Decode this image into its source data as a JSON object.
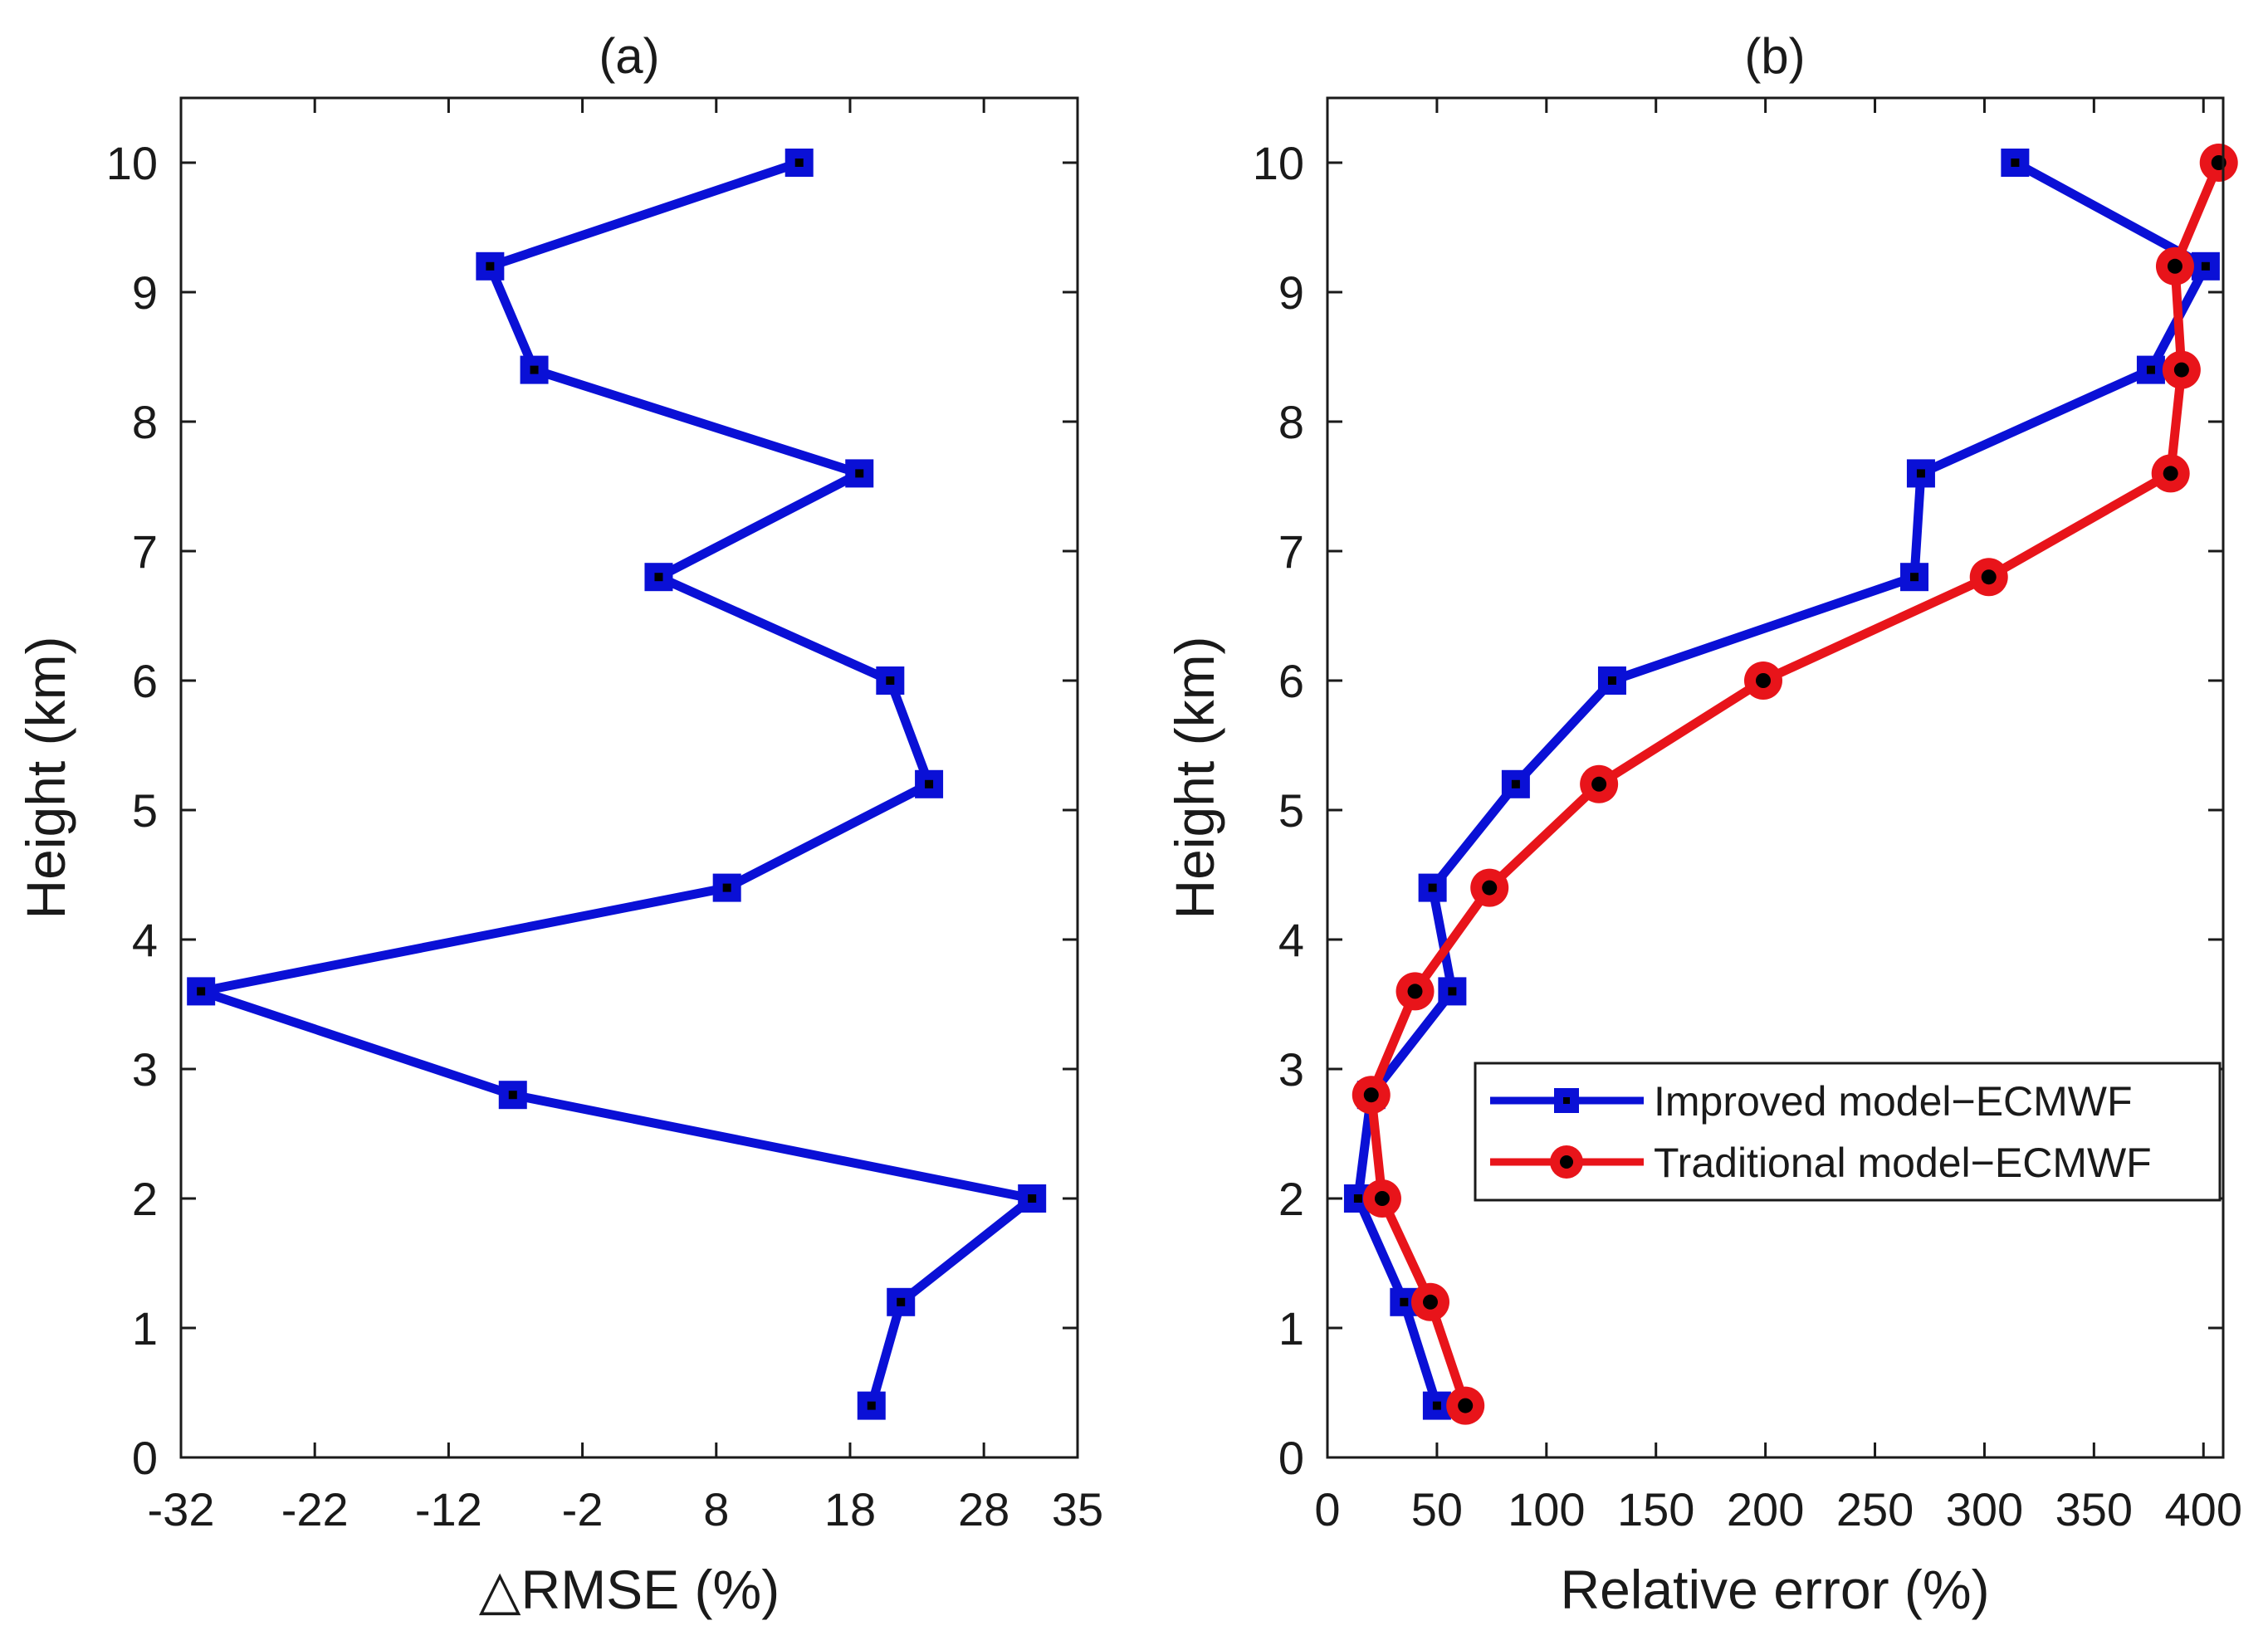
{
  "chart_data": [
    {
      "id": "a",
      "type": "line",
      "title": "(a)",
      "xlabel": "△RMSE (%)",
      "ylabel": "Height (km)",
      "xlim": [
        -32,
        35
      ],
      "ylim": [
        0,
        10.5
      ],
      "xticks": [
        -32,
        -22,
        -12,
        -2,
        8,
        18,
        28,
        35
      ],
      "yticks": [
        0,
        1,
        2,
        3,
        4,
        5,
        6,
        7,
        8,
        9,
        10
      ],
      "grid": false,
      "legend": null,
      "series": [
        {
          "name": "△RMSE",
          "color": "#0a10d6",
          "marker": "square",
          "y": [
            10,
            9.2,
            8.4,
            7.6,
            6.8,
            6.0,
            5.2,
            4.4,
            3.6,
            2.8,
            2.0,
            1.2,
            0.4
          ],
          "x": [
            14.2,
            -8.9,
            -5.6,
            18.7,
            3.7,
            21.0,
            23.9,
            8.8,
            -30.5,
            -7.2,
            31.6,
            21.8,
            19.6
          ]
        }
      ]
    },
    {
      "id": "b",
      "type": "line",
      "title": "(b)",
      "xlabel": "Relative error (%)",
      "ylabel": "Height (km)",
      "xlim": [
        0,
        409
      ],
      "ylim": [
        0,
        10.5
      ],
      "xticks": [
        0,
        50,
        100,
        150,
        200,
        250,
        300,
        350,
        400
      ],
      "yticks": [
        0,
        1,
        2,
        3,
        4,
        5,
        6,
        7,
        8,
        9,
        10
      ],
      "grid": false,
      "legend": "center-right",
      "series": [
        {
          "name": "Improved model−ECMWF",
          "color": "#0a10d6",
          "marker": "square",
          "y": [
            10,
            9.2,
            8.4,
            7.6,
            6.8,
            6.0,
            5.2,
            4.4,
            3.6,
            2.8,
            2.0,
            1.2,
            0.4
          ],
          "x": [
            314,
            401,
            376,
            271,
            268,
            130,
            86,
            48,
            57,
            20,
            14,
            35,
            50
          ]
        },
        {
          "name": "Traditional model−ECMWF",
          "color": "#e8141a",
          "marker": "circle",
          "y": [
            10,
            9.2,
            8.4,
            7.6,
            6.8,
            6.0,
            5.2,
            4.4,
            3.6,
            2.8,
            2.0,
            1.2,
            0.4
          ],
          "x": [
            407,
            387,
            390,
            385,
            302,
            199,
            124,
            74,
            40,
            20,
            25,
            47,
            63
          ]
        }
      ]
    }
  ]
}
